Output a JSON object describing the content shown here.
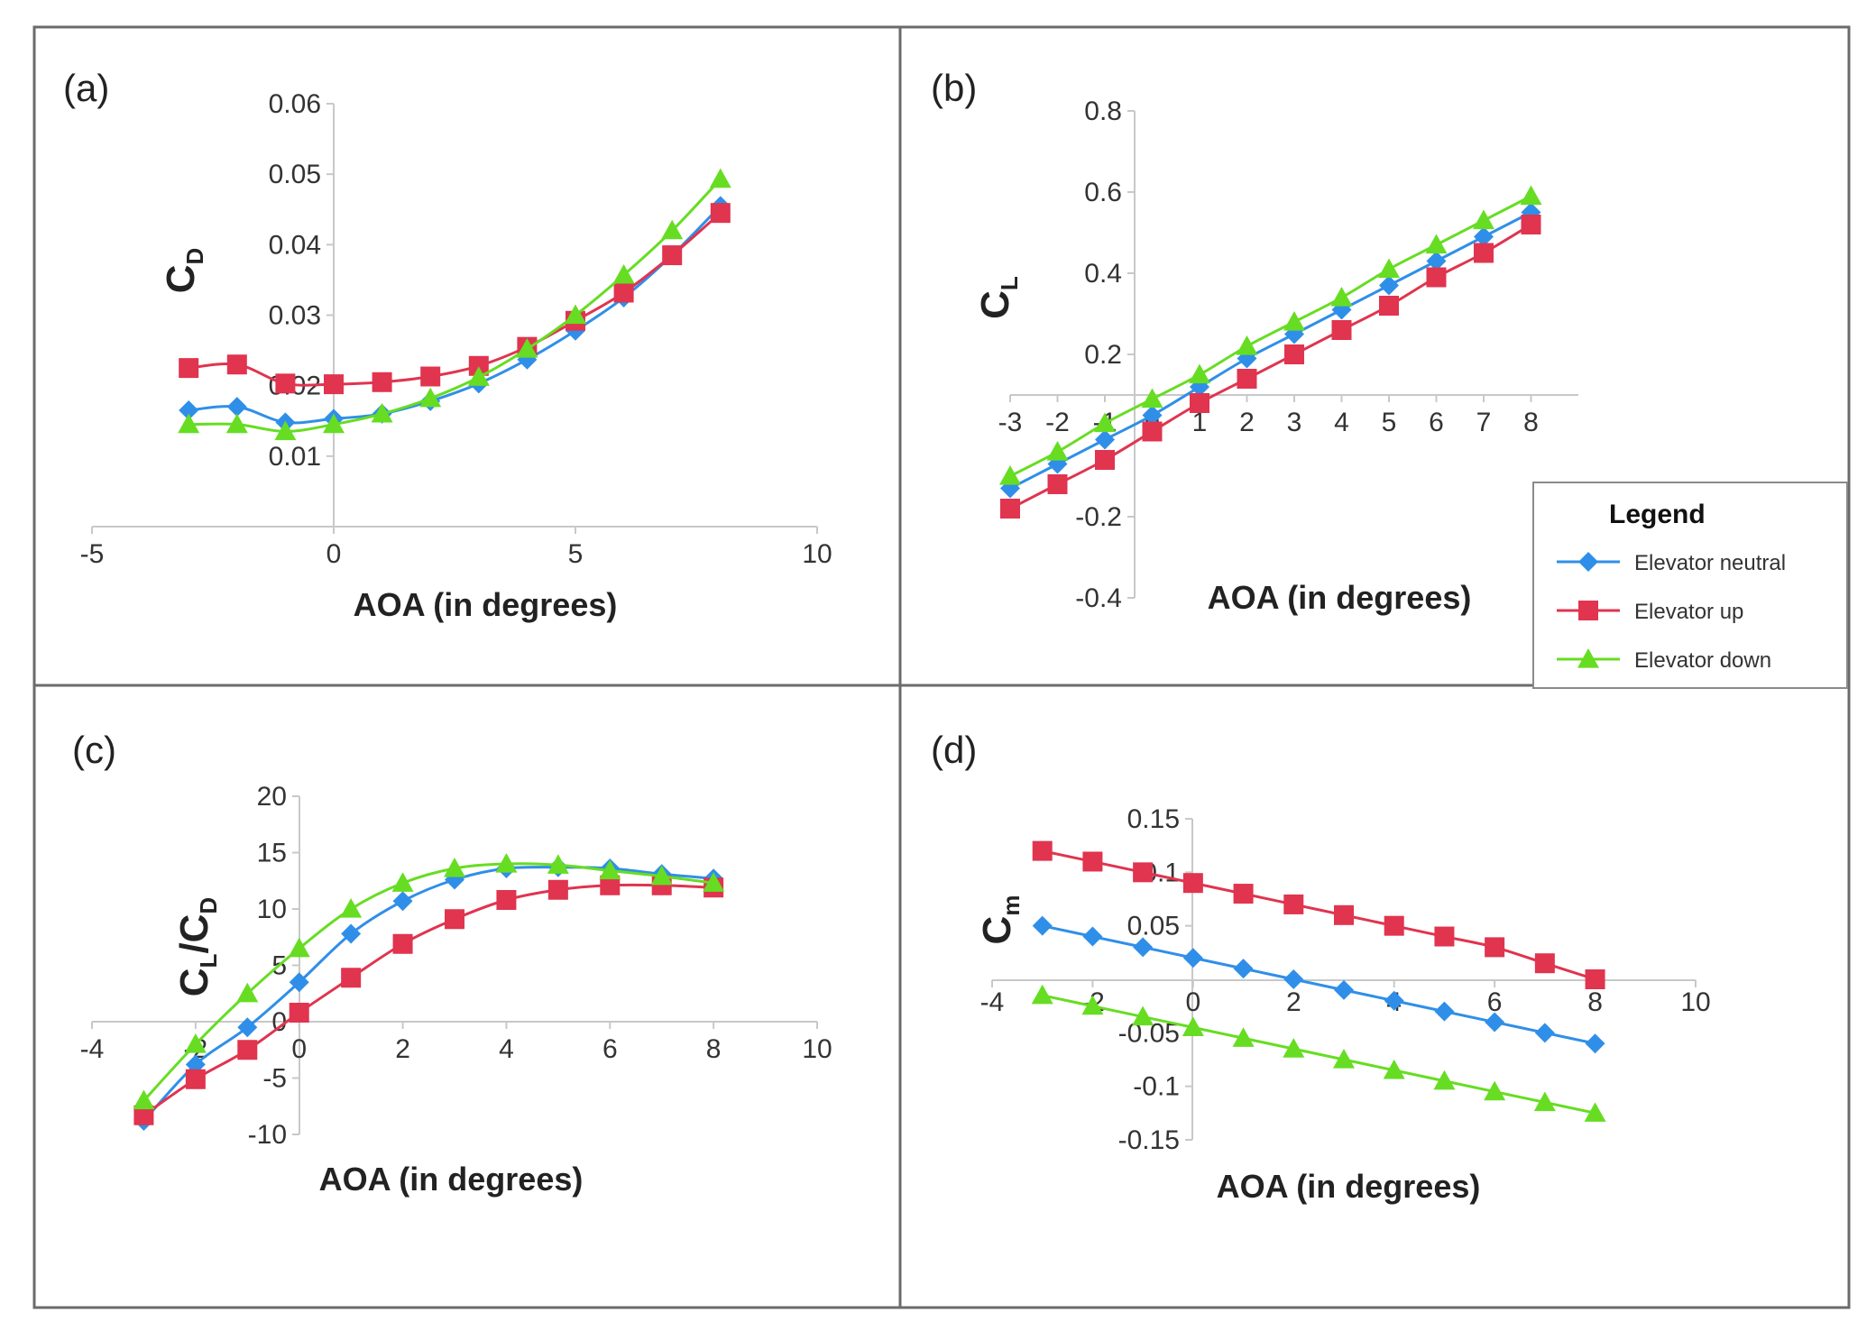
{
  "figure": {
    "colors": {
      "neutral": "#2f8fe8",
      "up": "#e0344f",
      "down": "#66dd22",
      "frame": "#6b6b6b",
      "axis": "#c8c8c8"
    }
  },
  "legend": {
    "title": "Legend",
    "items": [
      {
        "series": "neutral",
        "label": "Elevator neutral",
        "marker": "diamond"
      },
      {
        "series": "up",
        "label": "Elevator up",
        "marker": "square"
      },
      {
        "series": "down",
        "label": "Elevator down",
        "marker": "triangle"
      }
    ]
  },
  "chart_data": [
    {
      "panel": "(a)",
      "type": "line",
      "xlabel": "AOA (in degrees)",
      "ylabel_main": "C",
      "ylabel_sub": "D",
      "xlim": [
        -5,
        10
      ],
      "ylim": [
        0,
        0.06
      ],
      "xticks": [
        "-5",
        "0",
        "5",
        "10"
      ],
      "xtick_values": [
        -5,
        0,
        5,
        10
      ],
      "yticks": [
        "0.01",
        "0.02",
        "0.03",
        "0.04",
        "0.05",
        "0.06"
      ],
      "ytick_values": [
        0.01,
        0.02,
        0.03,
        0.04,
        0.05,
        0.06
      ],
      "x": [
        -3,
        -2,
        -1,
        0,
        1,
        2,
        3,
        4,
        5,
        6,
        7,
        8
      ],
      "series": [
        {
          "key": "neutral",
          "name": "Elevator neutral",
          "values": [
            0.0165,
            0.017,
            0.0148,
            0.0153,
            0.016,
            0.0178,
            0.0203,
            0.0237,
            0.0278,
            0.0325,
            0.0385,
            0.0455
          ]
        },
        {
          "key": "up",
          "name": "Elevator up",
          "values": [
            0.0225,
            0.023,
            0.0203,
            0.0202,
            0.0205,
            0.0213,
            0.0228,
            0.0255,
            0.0292,
            0.0332,
            0.0385,
            0.0445
          ]
        },
        {
          "key": "down",
          "name": "Elevator down",
          "values": [
            0.0145,
            0.0145,
            0.0135,
            0.0145,
            0.016,
            0.0182,
            0.0212,
            0.0252,
            0.03,
            0.0357,
            0.042,
            0.0493
          ]
        }
      ]
    },
    {
      "panel": "(b)",
      "type": "line",
      "xlabel": "AOA (in degrees)",
      "ylabel_main": "C",
      "ylabel_sub": "L",
      "xlim": [
        -3,
        9
      ],
      "ylim": [
        -0.4,
        0.8
      ],
      "xticks": [
        "-3",
        "-2",
        "-1",
        "0",
        "1",
        "2",
        "3",
        "4",
        "5",
        "6",
        "7",
        "8"
      ],
      "xtick_values": [
        -3,
        -2,
        -1,
        0,
        1,
        2,
        3,
        4,
        5,
        6,
        7,
        8
      ],
      "yticks": [
        "-0.4",
        "-0.2",
        "0.2",
        "0.4",
        "0.6",
        "0.8"
      ],
      "ytick_values": [
        -0.4,
        -0.2,
        0.2,
        0.4,
        0.6,
        0.8
      ],
      "x": [
        -3,
        -2,
        -1,
        0,
        1,
        2,
        3,
        4,
        5,
        6,
        7,
        8
      ],
      "series": [
        {
          "key": "neutral",
          "name": "Elevator neutral",
          "values": [
            -0.13,
            -0.07,
            -0.01,
            0.05,
            0.12,
            0.19,
            0.25,
            0.31,
            0.37,
            0.43,
            0.49,
            0.55
          ]
        },
        {
          "key": "up",
          "name": "Elevator up",
          "values": [
            -0.18,
            -0.12,
            -0.06,
            0.01,
            0.08,
            0.14,
            0.2,
            0.26,
            0.32,
            0.39,
            0.45,
            0.52
          ]
        },
        {
          "key": "down",
          "name": "Elevator down",
          "values": [
            -0.1,
            -0.04,
            0.03,
            0.09,
            0.15,
            0.22,
            0.28,
            0.34,
            0.41,
            0.47,
            0.53,
            0.59
          ]
        }
      ]
    },
    {
      "panel": "(c)",
      "type": "line",
      "xlabel": "AOA (in degrees)",
      "ylabel_parts": [
        {
          "text": "C",
          "sub": false
        },
        {
          "text": "L",
          "sub": true
        },
        {
          "text": "/C",
          "sub": false
        },
        {
          "text": "D",
          "sub": true
        }
      ],
      "xlim": [
        -4,
        10
      ],
      "ylim": [
        -10,
        20
      ],
      "xticks": [
        "-4",
        "-2",
        "0",
        "2",
        "4",
        "6",
        "8",
        "10"
      ],
      "xtick_values": [
        -4,
        -2,
        0,
        2,
        4,
        6,
        8,
        10
      ],
      "yticks": [
        "-10",
        "-5",
        "0",
        "5",
        "10",
        "15",
        "20"
      ],
      "ytick_values": [
        -10,
        -5,
        0,
        5,
        10,
        15,
        20
      ],
      "x": [
        -3,
        -2,
        -1,
        0,
        1,
        2,
        3,
        4,
        5,
        6,
        7,
        8
      ],
      "series": [
        {
          "key": "neutral",
          "name": "Elevator neutral",
          "values": [
            -8.8,
            -3.8,
            -0.5,
            3.5,
            7.8,
            10.7,
            12.6,
            13.6,
            13.7,
            13.6,
            13.1,
            12.7
          ]
        },
        {
          "key": "up",
          "name": "Elevator up",
          "values": [
            -8.3,
            -5.1,
            -2.5,
            0.8,
            3.9,
            6.9,
            9.1,
            10.8,
            11.7,
            12.1,
            12.1,
            11.9
          ]
        },
        {
          "key": "down",
          "name": "Elevator down",
          "values": [
            -7.0,
            -2.0,
            2.5,
            6.5,
            10.0,
            12.3,
            13.6,
            14.0,
            13.9,
            13.4,
            12.9,
            12.3
          ]
        }
      ]
    },
    {
      "panel": "(d)",
      "type": "line",
      "xlabel": "AOA (in degrees)",
      "ylabel_main": "C",
      "ylabel_sub": "m",
      "xlim": [
        -4,
        10
      ],
      "ylim": [
        -0.15,
        0.15
      ],
      "xticks": [
        "-4",
        "-2",
        "0",
        "2",
        "4",
        "6",
        "8",
        "10"
      ],
      "xtick_values": [
        -4,
        -2,
        0,
        2,
        4,
        6,
        8,
        10
      ],
      "yticks": [
        "-0.15",
        "-0.1",
        "-0.05",
        "0.05",
        "0.1",
        "0.15"
      ],
      "ytick_values": [
        -0.15,
        -0.1,
        -0.05,
        0.05,
        0.1,
        0.15
      ],
      "x": [
        -3,
        -2,
        -1,
        0,
        1,
        2,
        3,
        4,
        5,
        6,
        7,
        8
      ],
      "series": [
        {
          "key": "neutral",
          "name": "Elevator neutral",
          "values": [
            0.05,
            0.04,
            0.03,
            0.02,
            0.01,
            0.0,
            -0.01,
            -0.02,
            -0.03,
            -0.04,
            -0.05,
            -0.06
          ]
        },
        {
          "key": "up",
          "name": "Elevator up",
          "values": [
            0.12,
            0.11,
            0.1,
            0.09,
            0.08,
            0.07,
            0.06,
            0.05,
            0.04,
            0.03,
            0.015,
            0.0
          ]
        },
        {
          "key": "down",
          "name": "Elevator down",
          "values": [
            -0.015,
            -0.025,
            -0.035,
            -0.045,
            -0.055,
            -0.065,
            -0.075,
            -0.085,
            -0.095,
            -0.105,
            -0.115,
            -0.125
          ]
        }
      ]
    }
  ]
}
